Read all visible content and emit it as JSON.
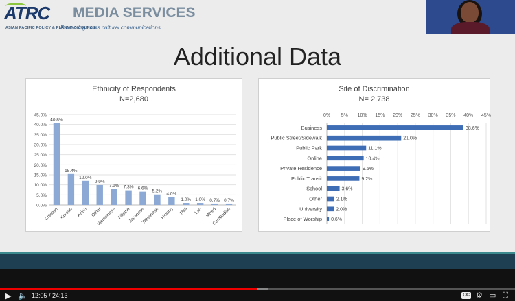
{
  "logo": {
    "brand": "ATRC",
    "services": "MEDIA SERVICES",
    "org_line": "ASIAN PACIFIC POLICY & PLANNING COUNCIL",
    "tagline": "Promoting cross cultural communications"
  },
  "slide": {
    "title": "Additional Data"
  },
  "charts": [
    {
      "type": "bar",
      "orientation": "vertical",
      "title": "Ethnicity of Respondents",
      "subtitle": "N=2,680",
      "categories": [
        "Chinese",
        "Korean",
        "Asian",
        "Other",
        "Vietnamese",
        "Filipino",
        "Japanese",
        "Taiwanese",
        "Hmong",
        "Thai",
        "Lao",
        "Mixed",
        "Cambodian"
      ],
      "values": [
        40.8,
        15.4,
        12.0,
        9.9,
        7.9,
        7.3,
        6.6,
        5.2,
        4.0,
        1.0,
        1.0,
        0.7,
        0.7
      ],
      "value_labels": [
        "40.8%",
        "15.4%",
        "12.0%",
        "9.9%",
        "7.9%",
        "7.3%",
        "6.6%",
        "5.2%",
        "4.0%",
        "1.0%",
        "1.0%",
        "0.7%",
        "0.7%"
      ],
      "ticks": [
        "0.0%",
        "5.0%",
        "10.0%",
        "15.0%",
        "20.0%",
        "25.0%",
        "30.0%",
        "35.0%",
        "40.0%",
        "45.0%"
      ],
      "ylim": [
        0,
        45
      ],
      "grid": true,
      "bar_color": "#8ba9d4"
    },
    {
      "type": "bar",
      "orientation": "horizontal",
      "title": "Site of Discrimination",
      "subtitle": "N= 2,738",
      "categories": [
        "Business",
        "Public Street/Sidewalk",
        "Public Park",
        "Online",
        "Private Residence",
        "Public Transit",
        "School",
        "Other",
        "University",
        "Place of Worship"
      ],
      "values": [
        38.6,
        21.0,
        11.1,
        10.4,
        9.5,
        9.2,
        3.6,
        2.1,
        2.0,
        0.6
      ],
      "value_labels": [
        "38.6%",
        "21.0%",
        "11.1%",
        "10.4%",
        "9.5%",
        "9.2%",
        "3.6%",
        "2.1%",
        "2.0%",
        "0.6%"
      ],
      "ticks": [
        "0%",
        "5%",
        "10%",
        "15%",
        "20%",
        "25%",
        "30%",
        "35%",
        "40%",
        "45%"
      ],
      "xlim": [
        0,
        45
      ],
      "grid": true,
      "bar_color": "#3e6db5"
    }
  ],
  "player": {
    "time": "12:05 / 24:13",
    "played_fraction": 0.499,
    "buffered_fraction": 0.52,
    "cc_label": "CC",
    "colors": {
      "played": "#ff0000",
      "track": "#555555"
    }
  }
}
